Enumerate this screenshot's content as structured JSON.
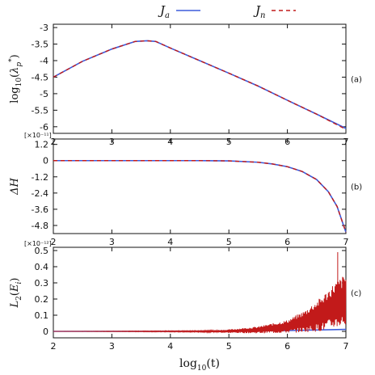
{
  "legend": [
    {
      "label": "J",
      "sub": "a",
      "color": "#3b5bdb",
      "dash": "solid"
    },
    {
      "label": "J",
      "sub": "n",
      "color": "#c21a1a",
      "dash": "dashed"
    }
  ],
  "xlabel": "log10(t)",
  "chart_data": [
    {
      "type": "line",
      "panel_tag": "(a)",
      "ylabel": "log10(λp*)",
      "xlim": [
        2,
        7
      ],
      "ylim": [
        -6.2,
        -2.9
      ],
      "xticks": [
        "2",
        "3",
        "4",
        "5",
        "6",
        "7"
      ],
      "yticks": [
        -3,
        -3.5,
        -4,
        -4.5,
        -5,
        -5.5,
        -6
      ],
      "ytick_labels": [
        "-3",
        "-3.5",
        "-4",
        "-4.5",
        "-5",
        "-5.5",
        "-6"
      ],
      "multiplier": "",
      "series": [
        {
          "name": "Ja",
          "x": [
            2,
            2.5,
            3,
            3.4,
            3.6,
            3.75,
            4,
            4.5,
            5,
            5.5,
            6,
            6.5,
            7
          ],
          "y": [
            -4.5,
            -4.02,
            -3.65,
            -3.42,
            -3.4,
            -3.42,
            -3.62,
            -4.0,
            -4.38,
            -4.77,
            -5.2,
            -5.62,
            -6.05
          ]
        },
        {
          "name": "Jn",
          "x": [
            2,
            2.5,
            3,
            3.4,
            3.6,
            3.75,
            4,
            4.5,
            5,
            5.5,
            6,
            6.5,
            7
          ],
          "y": [
            -4.5,
            -4.02,
            -3.65,
            -3.42,
            -3.4,
            -3.42,
            -3.62,
            -4.0,
            -4.38,
            -4.77,
            -5.2,
            -5.62,
            -6.08
          ]
        }
      ]
    },
    {
      "type": "line",
      "panel_tag": "(b)",
      "ylabel": "ΔH",
      "xlim": [
        2,
        7
      ],
      "ylim": [
        -5.4,
        1.6
      ],
      "xticks": [
        "2",
        "3",
        "4",
        "5",
        "6",
        "7"
      ],
      "yticks": [
        1.2,
        0,
        -1.2,
        -2.4,
        -3.6,
        -4.8
      ],
      "ytick_labels": [
        "1.2",
        "0",
        "-1.2",
        "-2.4",
        "-3.6",
        "-4.8"
      ],
      "multiplier": "[×10⁻¹¹]",
      "series": [
        {
          "name": "Ja",
          "x": [
            2,
            4.5,
            5,
            5.5,
            5.75,
            6,
            6.25,
            6.5,
            6.7,
            6.85,
            7
          ],
          "y": [
            0,
            0,
            -0.02,
            -0.12,
            -0.25,
            -0.45,
            -0.8,
            -1.4,
            -2.3,
            -3.4,
            -5.3
          ]
        },
        {
          "name": "Jn",
          "x": [
            2,
            4.5,
            5,
            5.5,
            5.75,
            6,
            6.25,
            6.5,
            6.7,
            6.85,
            7
          ],
          "y": [
            0,
            0,
            -0.02,
            -0.12,
            -0.25,
            -0.45,
            -0.8,
            -1.4,
            -2.3,
            -3.4,
            -5.3
          ]
        }
      ]
    },
    {
      "type": "line",
      "panel_tag": "(c)",
      "ylabel": "L2(Ei)",
      "xlim": [
        2,
        7
      ],
      "ylim": [
        -0.04,
        0.52
      ],
      "xticks": [
        "2",
        "3",
        "4",
        "5",
        "6",
        "7"
      ],
      "yticks": [
        0.5,
        0.4,
        0.3,
        0.2,
        0.1,
        0
      ],
      "ytick_labels": [
        "0.5",
        "0.4",
        "0.3",
        "0.2",
        "0.1",
        "0"
      ],
      "multiplier": "[×10⁻¹²]",
      "series": [
        {
          "name": "Ja",
          "x": [
            2,
            4,
            5,
            6,
            7
          ],
          "y": [
            0,
            0,
            0.002,
            0.005,
            0.012
          ]
        },
        {
          "name": "Jn",
          "x": [
            2,
            4.5,
            5,
            5.5,
            6,
            6.3,
            6.6,
            6.8,
            7
          ],
          "y_upper": [
            0,
            0.004,
            0.012,
            0.03,
            0.07,
            0.13,
            0.22,
            0.3,
            0.36
          ],
          "y_lower": [
            0,
            -0.004,
            -0.01,
            -0.012,
            -0.01,
            -0.005,
            0.0,
            0.02,
            0.03
          ],
          "peak": [
            6.86,
            0.49
          ]
        }
      ]
    }
  ]
}
